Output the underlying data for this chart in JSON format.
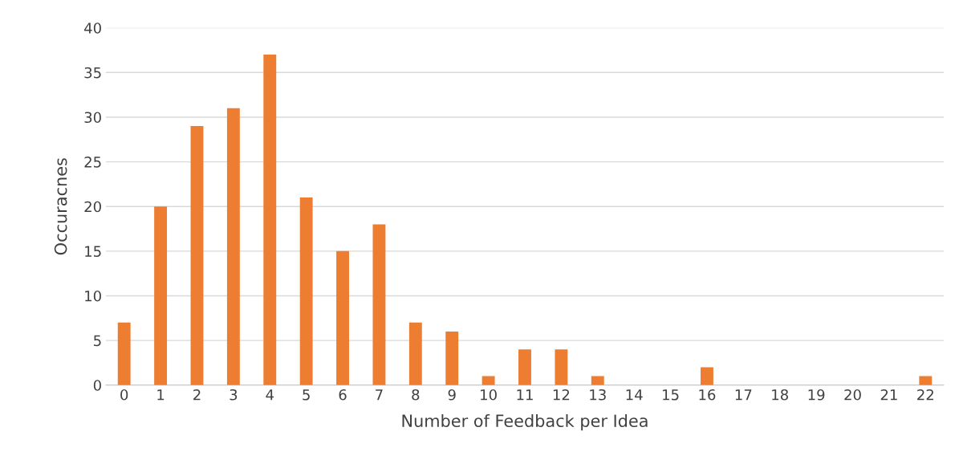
{
  "chart_data": {
    "type": "bar",
    "xlabel": "Number of Feedback per Idea",
    "ylabel": "Occuracnes",
    "categories": [
      "0",
      "1",
      "2",
      "3",
      "4",
      "5",
      "6",
      "7",
      "8",
      "9",
      "10",
      "11",
      "12",
      "13",
      "14",
      "15",
      "16",
      "17",
      "18",
      "19",
      "20",
      "21",
      "22"
    ],
    "values": [
      7,
      20,
      29,
      31,
      37,
      21,
      15,
      18,
      7,
      6,
      1,
      4,
      4,
      1,
      0,
      0,
      2,
      0,
      0,
      0,
      0,
      0,
      1
    ],
    "color": "#ed7d31",
    "ylim": [
      0,
      40
    ],
    "yticks": [
      0,
      5,
      10,
      15,
      20,
      25,
      30,
      35,
      40
    ],
    "grid": "y",
    "legend": false
  }
}
